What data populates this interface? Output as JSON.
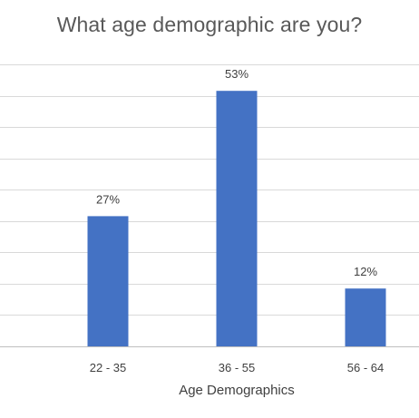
{
  "chart_data": {
    "type": "bar",
    "title": "What age demographic are you?",
    "xlabel": "Age Demographics",
    "ylabel": "",
    "categories": [
      "22 - 35",
      "36 - 55",
      "56 - 64"
    ],
    "values": [
      27,
      53,
      12
    ],
    "data_labels": [
      "27%",
      "53%",
      "12%"
    ],
    "ylim": [
      0,
      60
    ],
    "ytick_step": 6.5,
    "grid": true,
    "legend": "none",
    "colors": {
      "bar": "#4472C4"
    }
  }
}
